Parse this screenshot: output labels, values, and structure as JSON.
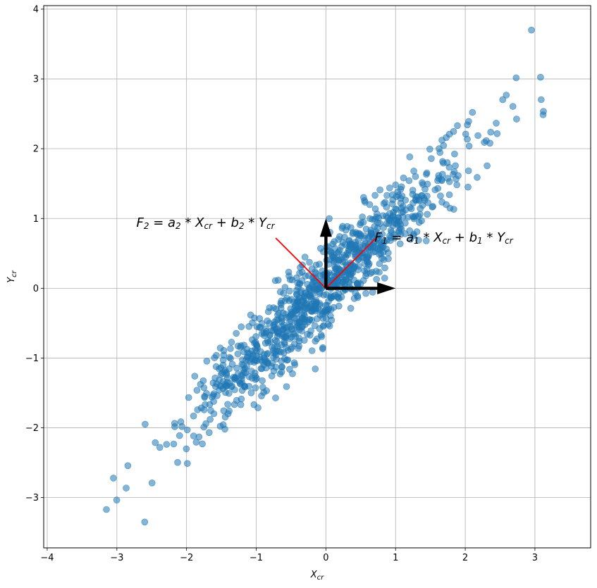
{
  "chart_data": {
    "type": "scatter",
    "title": "",
    "xlabel": {
      "base": "X",
      "sub": "cr"
    },
    "ylabel": {
      "base": "Y",
      "sub": "cr"
    },
    "xlim": [
      -4.05,
      3.8
    ],
    "ylim": [
      -3.72,
      4.05
    ],
    "x_ticks": [
      -4,
      -3,
      -2,
      -1,
      0,
      1,
      2,
      3
    ],
    "y_ticks": [
      -3,
      -2,
      -1,
      0,
      1,
      2,
      3,
      4
    ],
    "x_tick_labels": [
      "−4",
      "−3",
      "−2",
      "−1",
      "0",
      "1",
      "2",
      "3"
    ],
    "y_tick_labels": [
      "−3",
      "−2",
      "−1",
      "0",
      "1",
      "2",
      "3",
      "4"
    ],
    "grid": true,
    "point_color": "#1f77b4",
    "point_alpha": 0.55,
    "seed": 7,
    "n_points": 1000,
    "cov": [
      [
        1.0,
        0.95
      ],
      [
        0.95,
        1.0
      ]
    ],
    "outliers": [
      [
        2.95,
        3.7
      ],
      [
        -3.15,
        -3.17
      ],
      [
        -2.6,
        -3.35
      ],
      [
        -3.05,
        -2.72
      ]
    ],
    "arrows": [
      {
        "from": [
          0,
          0
        ],
        "to": [
          1.0,
          0
        ],
        "color": "#000000"
      },
      {
        "from": [
          0,
          0
        ],
        "to": [
          0,
          1.0
        ],
        "color": "#000000"
      }
    ],
    "pc_lines": [
      {
        "from": [
          0,
          0
        ],
        "to": [
          0.72,
          0.72
        ],
        "color": "#ff0000"
      },
      {
        "from": [
          0,
          0
        ],
        "to": [
          -0.72,
          0.72
        ],
        "color": "#ff0000"
      }
    ],
    "annotations": [
      {
        "id": "f2",
        "text": "F_2 = a_2 * X_cr + b_2 * Y_cr",
        "x": -2.72,
        "y": 0.88,
        "parts": [
          [
            "F",
            ""
          ],
          [
            "2",
            "sub"
          ],
          [
            " = a",
            ""
          ],
          [
            "2",
            "sub"
          ],
          [
            " * X",
            ""
          ],
          [
            "cr",
            "sub"
          ],
          [
            " + b",
            ""
          ],
          [
            "2",
            "sub"
          ],
          [
            " * Y",
            ""
          ],
          [
            "cr",
            "sub"
          ]
        ]
      },
      {
        "id": "f1",
        "text": "F_1 = a_1 * X_cr + b_1 * Y_cr",
        "x": 0.7,
        "y": 0.67,
        "parts": [
          [
            "F",
            ""
          ],
          [
            "1",
            "sub"
          ],
          [
            " = a",
            ""
          ],
          [
            "1",
            "sub"
          ],
          [
            " * X",
            ""
          ],
          [
            "cr",
            "sub"
          ],
          [
            " + b",
            ""
          ],
          [
            "1",
            "sub"
          ],
          [
            " * Y",
            ""
          ],
          [
            "cr",
            "sub"
          ]
        ]
      }
    ]
  }
}
